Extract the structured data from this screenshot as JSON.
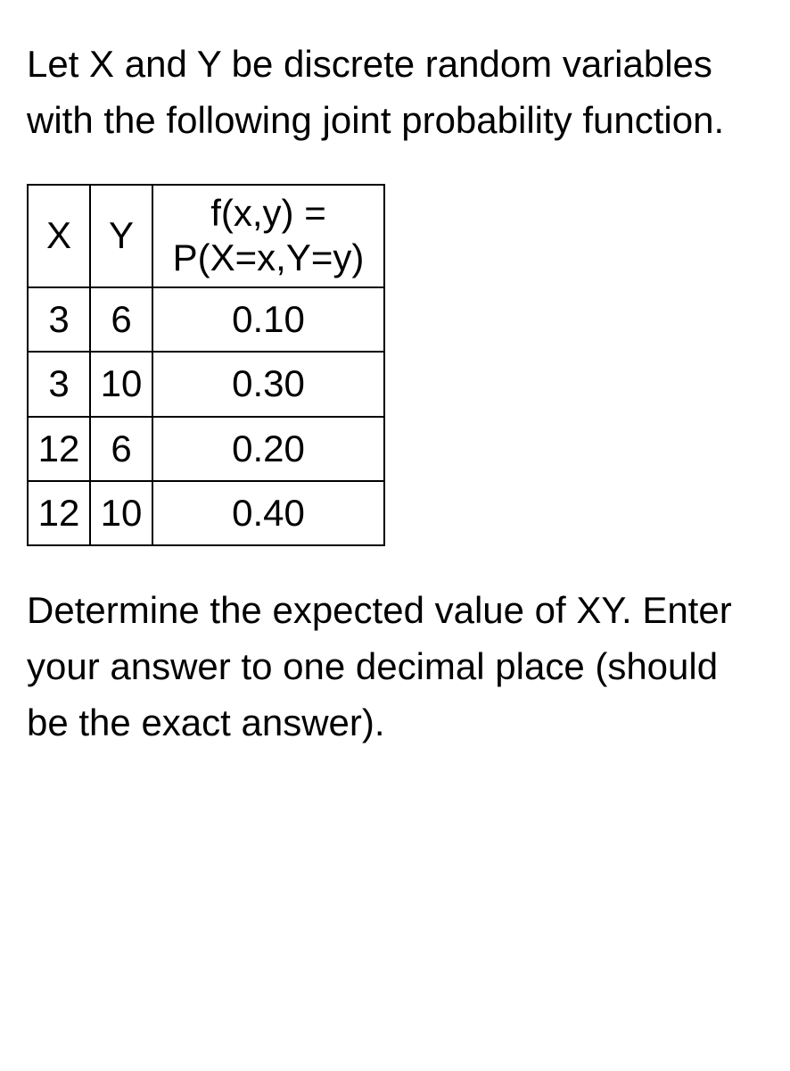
{
  "intro": "Let X and Y be discrete random variables with the following joint probability function.",
  "table": {
    "columns": [
      "X",
      "Y"
    ],
    "prob_header_line1": "f(x,y) =",
    "prob_header_line2": "P(X=x,Y=y)",
    "rows": [
      {
        "x": "3",
        "y": "6",
        "p": "0.10"
      },
      {
        "x": "3",
        "y": "10",
        "p": "0.30"
      },
      {
        "x": "12",
        "y": "6",
        "p": "0.20"
      },
      {
        "x": "12",
        "y": "10",
        "p": "0.40"
      }
    ],
    "border_color": "#000000",
    "background_color": "#ffffff",
    "text_color": "#000000",
    "font_size_pt": 32
  },
  "outro": "Determine the expected value of XY. Enter your answer to one decimal place (should be the exact answer).",
  "page": {
    "background_color": "#ffffff",
    "text_color": "#000000"
  }
}
